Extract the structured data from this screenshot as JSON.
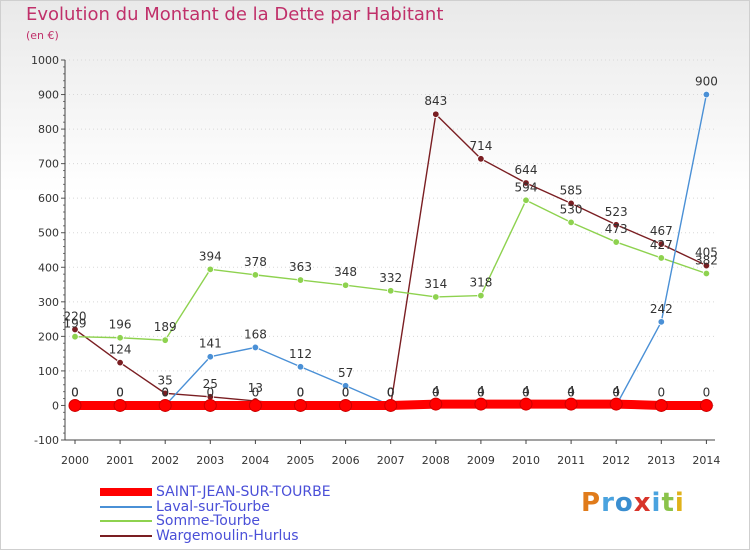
{
  "header": {
    "title": "Evolution du Montant de la Dette par Habitant",
    "subtitle": "(en €)"
  },
  "logo": {
    "text": "Proxiti",
    "colors": [
      "#e07b1a",
      "#4aa3df",
      "#3a8ed0",
      "#d8342a",
      "#4aa3df",
      "#8bc34a",
      "#e0b21a"
    ]
  },
  "chart_data": {
    "type": "line",
    "x": [
      "2000",
      "2001",
      "2002",
      "2003",
      "2004",
      "2005",
      "2006",
      "2007",
      "2008",
      "2009",
      "2010",
      "2011",
      "2012",
      "2013",
      "2014"
    ],
    "ylim": [
      -100,
      1000
    ],
    "yticks": [
      "-100",
      "0",
      "100",
      "200",
      "300",
      "400",
      "500",
      "600",
      "700",
      "800",
      "900",
      "1000"
    ],
    "ytick_values": [
      -100,
      0,
      100,
      200,
      300,
      400,
      500,
      600,
      700,
      800,
      900,
      1000
    ],
    "grid": "horizontal dotted",
    "legend_position": "bottom-left",
    "series": [
      {
        "name": "Wargemoulin-Hurlus",
        "color": "#7a1e22",
        "values": [
          220,
          124,
          35,
          25,
          13,
          0,
          0,
          0,
          843,
          714,
          644,
          585,
          523,
          467,
          405
        ],
        "labels": [
          "220",
          "124",
          "35",
          "25",
          "13",
          "0",
          "0",
          "0",
          "843",
          "714",
          "644",
          "585",
          "523",
          "467",
          "405"
        ]
      },
      {
        "name": "Somme-Tourbe",
        "color": "#8ed24f",
        "values": [
          199,
          196,
          189,
          394,
          378,
          363,
          348,
          332,
          314,
          318,
          594,
          530,
          473,
          427,
          382
        ],
        "labels": [
          "199",
          "196",
          "189",
          "394",
          "378",
          "363",
          "348",
          "332",
          "314",
          "318",
          "594",
          "530",
          "473",
          "427",
          "382"
        ]
      },
      {
        "name": "Laval-sur-Tourbe",
        "color": "#4a90d6",
        "values": [
          0,
          0,
          0,
          141,
          168,
          112,
          57,
          0,
          0,
          0,
          0,
          0,
          0,
          242,
          900
        ],
        "labels": [
          "0",
          "0",
          "0",
          "141",
          "168",
          "112",
          "57",
          "0",
          "0",
          "0",
          "0",
          "0",
          "0",
          "242",
          "900"
        ]
      },
      {
        "name": "SAINT-JEAN-SUR-TOURBE",
        "color": "#ff0000",
        "values": [
          0,
          0,
          0,
          0,
          0,
          0,
          0,
          0,
          4,
          4,
          4,
          4,
          4,
          0,
          0
        ],
        "labels": [
          "0",
          "0",
          "0",
          "0",
          "0",
          "0",
          "0",
          "0",
          "4",
          "4",
          "4",
          "4",
          "4",
          "0",
          "0"
        ]
      }
    ],
    "legend_order": [
      "SAINT-JEAN-SUR-TOURBE",
      "Laval-sur-Tourbe",
      "Somme-Tourbe",
      "Wargemoulin-Hurlus"
    ]
  }
}
